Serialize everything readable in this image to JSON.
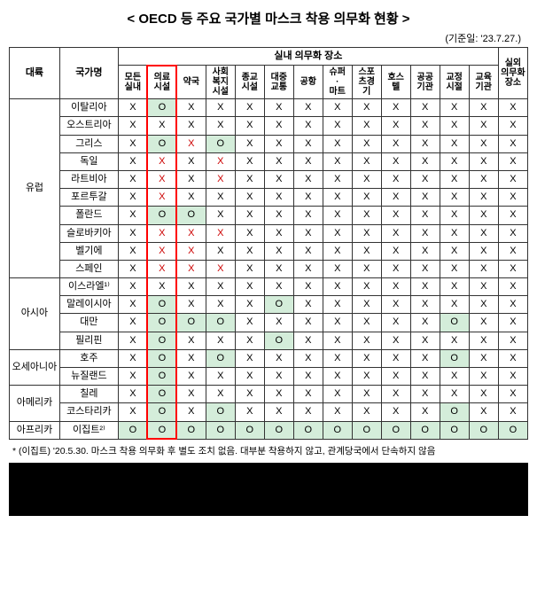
{
  "title": "< OECD 등 주요 국가별 마스크 착용 의무화 현황 >",
  "subtitle": "(기준일: '23.7.27.)",
  "headers": {
    "continent": "대륙",
    "country": "국가명",
    "indoor_group": "실내 의무화 장소",
    "outdoor": "실외\n의무화\n장소",
    "places": [
      "모든\n실내",
      "의료\n시설",
      "약국",
      "사회\n복지\n시설",
      "종교\n시설",
      "대중\n교통",
      "공항",
      "슈퍼\n·\n마트",
      "스포\n츠경\n기",
      "호스\n텔",
      "공공\n기관",
      "교정\n시절",
      "교육\n기관"
    ]
  },
  "highlight_col_index": 1,
  "colors": {
    "green_bg": "#d4edda",
    "red_text": "#c00",
    "red_border": "#ff0000"
  },
  "continents": [
    {
      "name": "유럽",
      "rowspan": 10,
      "countries": [
        {
          "name": "이탈리아",
          "cells": [
            "X",
            "O",
            "X",
            "X",
            "X",
            "X",
            "X",
            "X",
            "X",
            "X",
            "X",
            "X",
            "X",
            "X"
          ]
        },
        {
          "name": "오스트리아",
          "cells": [
            "X",
            "X",
            "X",
            "X",
            "X",
            "X",
            "X",
            "X",
            "X",
            "X",
            "X",
            "X",
            "X",
            "X"
          ]
        },
        {
          "name": "그리스",
          "cells": [
            "X",
            "O",
            "Xr",
            "O",
            "X",
            "X",
            "X",
            "X",
            "X",
            "X",
            "X",
            "X",
            "X",
            "X"
          ]
        },
        {
          "name": "독일",
          "cells": [
            "X",
            "Xr",
            "X",
            "Xr",
            "X",
            "X",
            "X",
            "X",
            "X",
            "X",
            "X",
            "X",
            "X",
            "X"
          ]
        },
        {
          "name": "라트비아",
          "cells": [
            "X",
            "Xr",
            "X",
            "Xr",
            "X",
            "X",
            "X",
            "X",
            "X",
            "X",
            "X",
            "X",
            "X",
            "X"
          ]
        },
        {
          "name": "포르투갈",
          "cells": [
            "X",
            "Xr",
            "X",
            "X",
            "X",
            "X",
            "X",
            "X",
            "X",
            "X",
            "X",
            "X",
            "X",
            "X"
          ]
        },
        {
          "name": "폴란드",
          "cells": [
            "X",
            "O",
            "O",
            "X",
            "X",
            "X",
            "X",
            "X",
            "X",
            "X",
            "X",
            "X",
            "X",
            "X"
          ]
        },
        {
          "name": "슬로바키아",
          "cells": [
            "X",
            "Xr",
            "Xr",
            "Xr",
            "X",
            "X",
            "X",
            "X",
            "X",
            "X",
            "X",
            "X",
            "X",
            "X"
          ]
        },
        {
          "name": "벨기에",
          "cells": [
            "X",
            "Xr",
            "Xr",
            "X",
            "X",
            "X",
            "X",
            "X",
            "X",
            "X",
            "X",
            "X",
            "X",
            "X"
          ]
        },
        {
          "name": "스페인",
          "cells": [
            "X",
            "Xr",
            "Xr",
            "Xr",
            "X",
            "X",
            "X",
            "X",
            "X",
            "X",
            "X",
            "X",
            "X",
            "X"
          ]
        }
      ]
    },
    {
      "name": "아시아",
      "rowspan": 4,
      "countries": [
        {
          "name": "이스라엘¹⁾",
          "cells": [
            "X",
            "X",
            "X",
            "X",
            "X",
            "X",
            "X",
            "X",
            "X",
            "X",
            "X",
            "X",
            "X",
            "X"
          ]
        },
        {
          "name": "말레이시아",
          "cells": [
            "X",
            "O",
            "X",
            "X",
            "X",
            "O",
            "X",
            "X",
            "X",
            "X",
            "X",
            "X",
            "X",
            "X"
          ]
        },
        {
          "name": "대만",
          "cells": [
            "X",
            "O",
            "O",
            "O",
            "X",
            "X",
            "X",
            "X",
            "X",
            "X",
            "X",
            "O",
            "X",
            "X"
          ]
        },
        {
          "name": "필리핀",
          "cells": [
            "X",
            "O",
            "X",
            "X",
            "X",
            "O",
            "X",
            "X",
            "X",
            "X",
            "X",
            "X",
            "X",
            "X"
          ]
        }
      ]
    },
    {
      "name": "오세아니아",
      "rowspan": 2,
      "countries": [
        {
          "name": "호주",
          "cells": [
            "X",
            "O",
            "X",
            "O",
            "X",
            "X",
            "X",
            "X",
            "X",
            "X",
            "X",
            "O",
            "X",
            "X"
          ]
        },
        {
          "name": "뉴질랜드",
          "cells": [
            "X",
            "O",
            "X",
            "X",
            "X",
            "X",
            "X",
            "X",
            "X",
            "X",
            "X",
            "X",
            "X",
            "X"
          ]
        }
      ]
    },
    {
      "name": "아메리카",
      "rowspan": 2,
      "countries": [
        {
          "name": "칠레",
          "cells": [
            "X",
            "O",
            "X",
            "X",
            "X",
            "X",
            "X",
            "X",
            "X",
            "X",
            "X",
            "X",
            "X",
            "X"
          ]
        },
        {
          "name": "코스타리카",
          "cells": [
            "X",
            "O",
            "X",
            "O",
            "X",
            "X",
            "X",
            "X",
            "X",
            "X",
            "X",
            "O",
            "X",
            "X"
          ]
        }
      ]
    },
    {
      "name": "아프리카",
      "rowspan": 1,
      "countries": [
        {
          "name": "이집트²⁾",
          "cells": [
            "O",
            "O",
            "O",
            "O",
            "O",
            "O",
            "O",
            "O",
            "O",
            "O",
            "O",
            "O",
            "O",
            "O"
          ]
        }
      ]
    }
  ],
  "footnote": "* (이집트) '20.5.30. 마스크 착용 의무화 후 별도 조치 없음. 대부분 착용하지 않고, 관계당국에서 단속하지 않음"
}
